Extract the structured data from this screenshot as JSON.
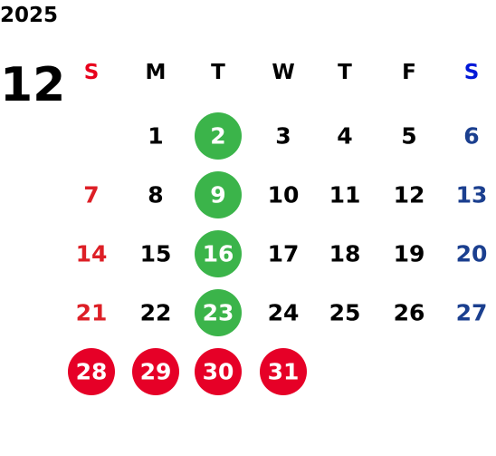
{
  "year": "2025",
  "month": "12",
  "weekdays": [
    "S",
    "M",
    "T",
    "W",
    "T",
    "F",
    "S"
  ],
  "weeks": [
    [
      null,
      1,
      2,
      3,
      4,
      5,
      6
    ],
    [
      7,
      8,
      9,
      10,
      11,
      12,
      13
    ],
    [
      14,
      15,
      16,
      17,
      18,
      19,
      20
    ],
    [
      21,
      22,
      23,
      24,
      25,
      26,
      27
    ],
    [
      28,
      29,
      30,
      31,
      null,
      null,
      null
    ]
  ]
}
